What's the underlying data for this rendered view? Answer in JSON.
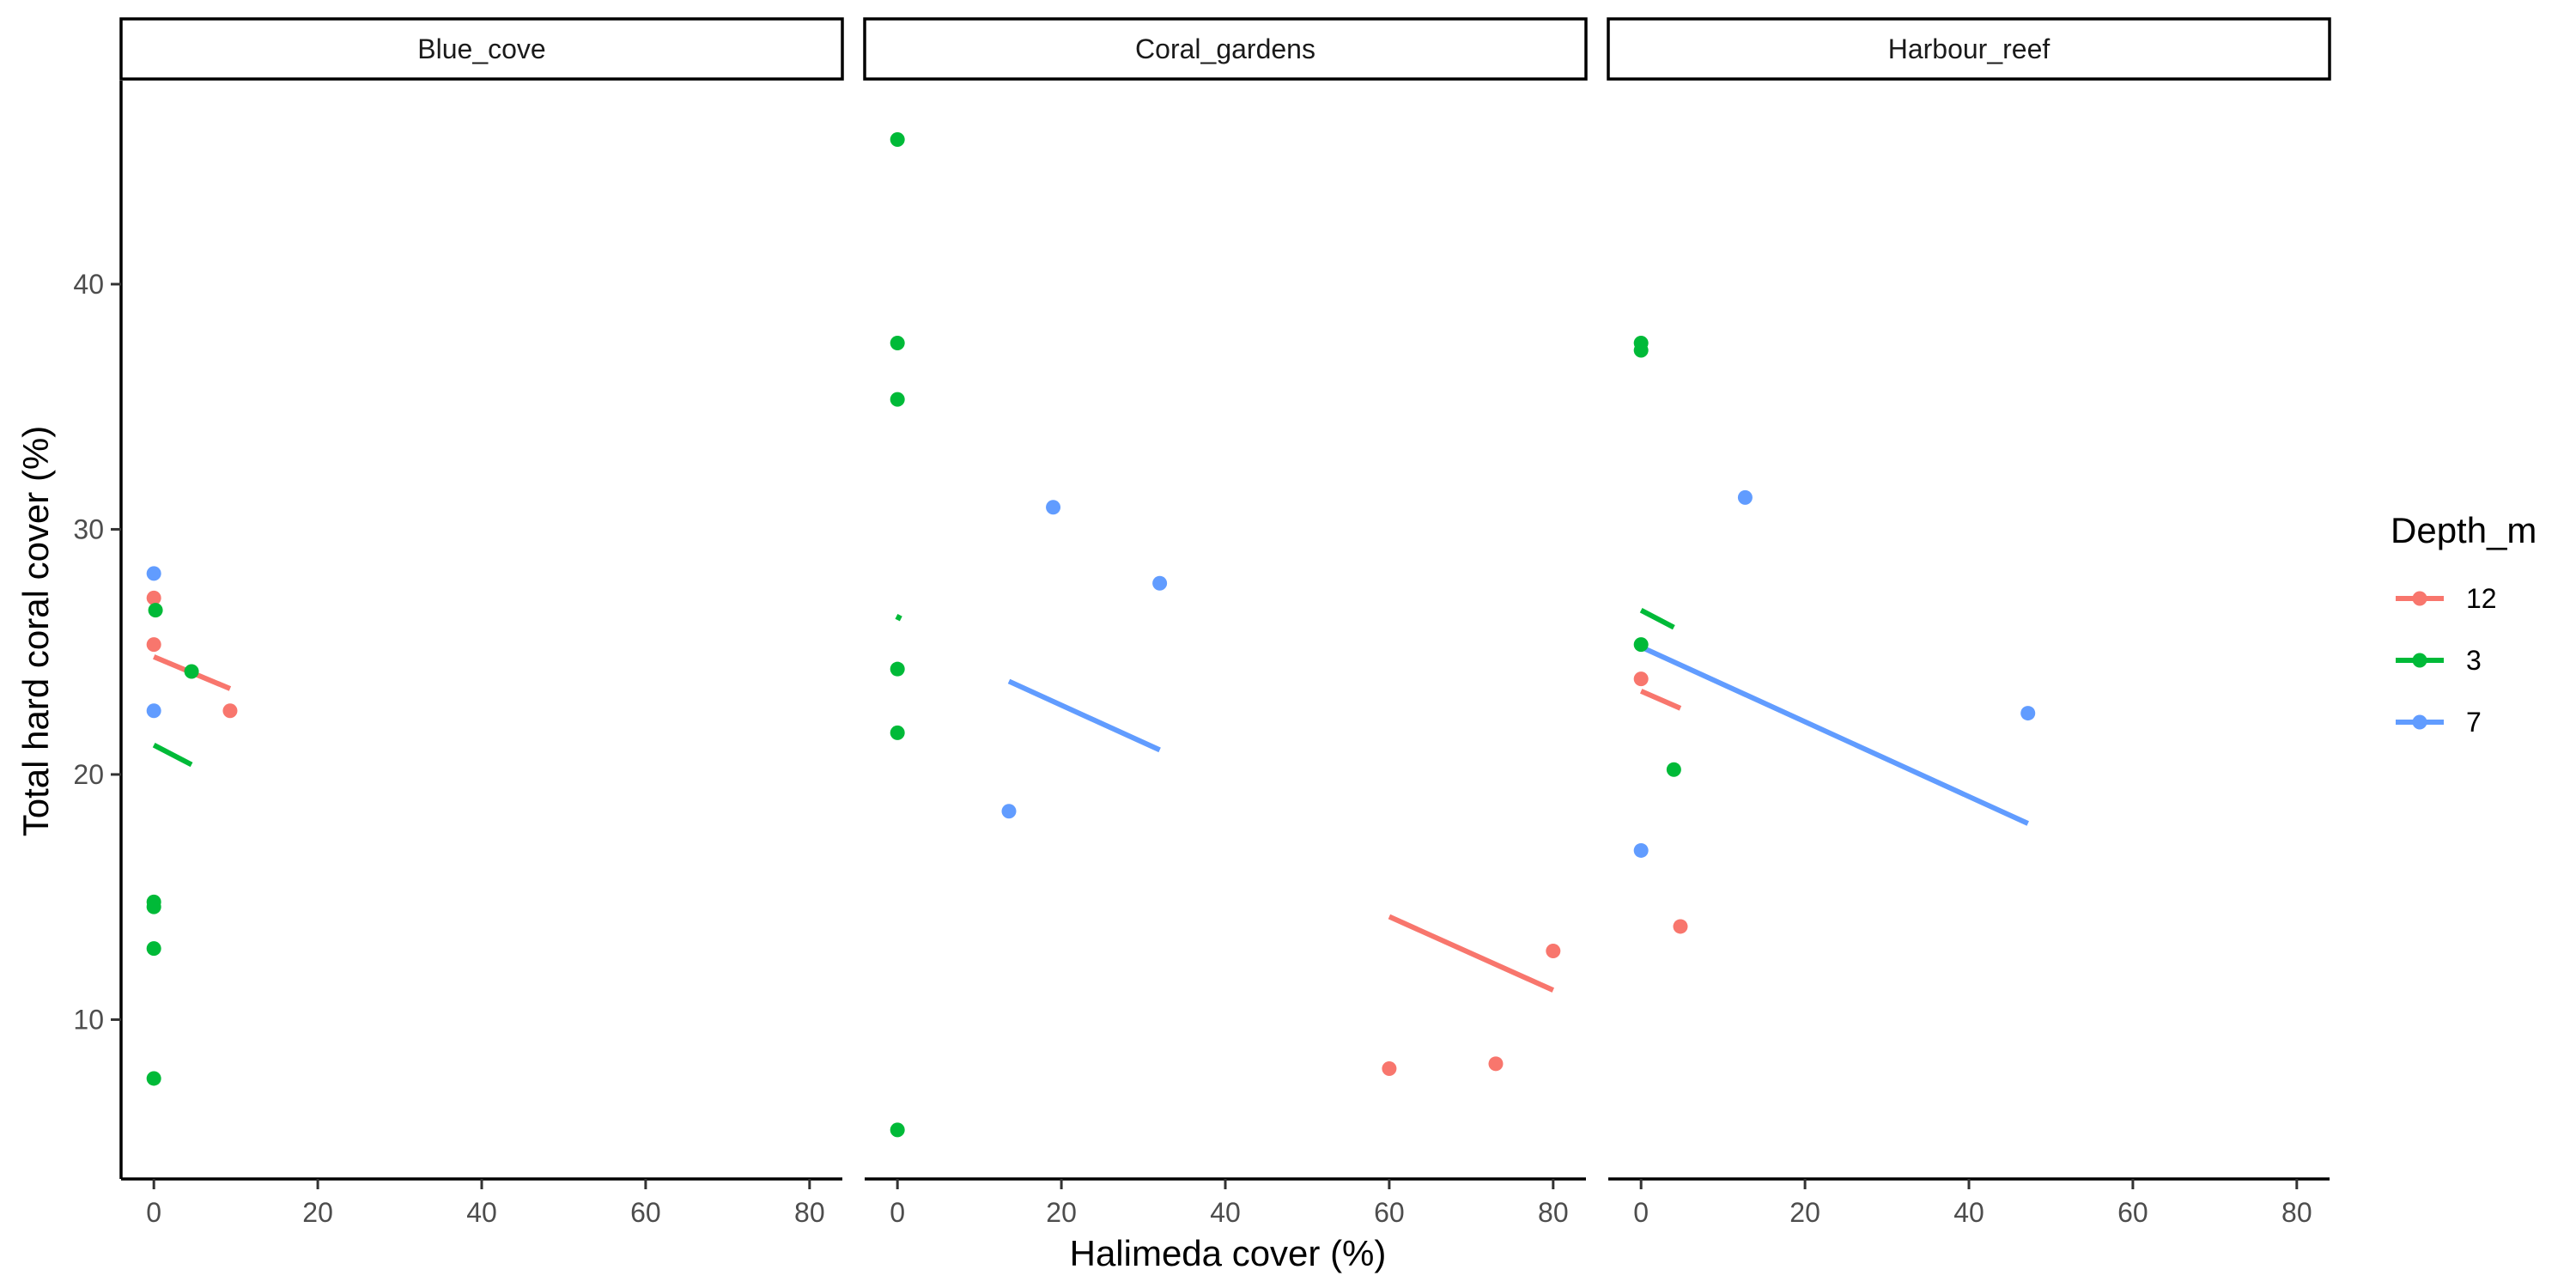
{
  "chart_data": {
    "type": "scatter",
    "xlabel": "Halimeda cover (%)",
    "ylabel": "Total hard coral cover (%)",
    "xlim": [
      -4,
      84
    ],
    "ylim": [
      3.5,
      48.3
    ],
    "x_ticks": [
      0,
      20,
      40,
      60,
      80
    ],
    "y_ticks": [
      10,
      20,
      30,
      40
    ],
    "grid": false,
    "legend": {
      "title": "Depth_m",
      "placement": "right",
      "entries": [
        {
          "label": "12",
          "color": "#F8766D"
        },
        {
          "label": "3",
          "color": "#00BA38"
        },
        {
          "label": "7",
          "color": "#619CFF"
        }
      ]
    },
    "panels": [
      {
        "name": "Blue_cove",
        "series": [
          {
            "name": "12",
            "points": [
              [
                0,
                27.2
              ],
              [
                0,
                25.3
              ],
              [
                9.3,
                22.6
              ]
            ],
            "fit": [
              [
                0,
                24.8
              ],
              [
                9.3,
                23.5
              ]
            ]
          },
          {
            "name": "3",
            "points": [
              [
                0.2,
                26.7
              ],
              [
                4.6,
                24.2
              ],
              [
                0,
                14.8
              ],
              [
                0,
                14.6
              ],
              [
                0,
                12.9
              ],
              [
                0,
                7.6
              ]
            ],
            "fit": [
              [
                0,
                21.2
              ],
              [
                4.6,
                20.4
              ]
            ]
          },
          {
            "name": "7",
            "points": [
              [
                0,
                28.2
              ],
              [
                0,
                22.6
              ]
            ],
            "fit": null
          }
        ]
      },
      {
        "name": "Coral_gardens",
        "series": [
          {
            "name": "12",
            "points": [
              [
                60,
                8.0
              ],
              [
                73,
                8.2
              ],
              [
                80,
                12.8
              ]
            ],
            "fit": [
              [
                60,
                14.2
              ],
              [
                80,
                11.2
              ]
            ]
          },
          {
            "name": "3",
            "points": [
              [
                0,
                45.9
              ],
              [
                0,
                37.6
              ],
              [
                0,
                35.3
              ],
              [
                0,
                24.3
              ],
              [
                0,
                21.7
              ],
              [
                0,
                5.5
              ]
            ],
            "fit": [
              [
                0,
                26.3
              ],
              [
                0.3,
                26.5
              ]
            ]
          },
          {
            "name": "7",
            "points": [
              [
                13.6,
                18.5
              ],
              [
                19,
                30.9
              ],
              [
                32,
                27.8
              ]
            ],
            "fit": [
              [
                13.6,
                23.8
              ],
              [
                32,
                21.0
              ]
            ]
          }
        ]
      },
      {
        "name": "Harbour_reef",
        "series": [
          {
            "name": "12",
            "points": [
              [
                0,
                23.9
              ],
              [
                4.8,
                13.8
              ]
            ],
            "fit": [
              [
                0,
                23.4
              ],
              [
                4.8,
                22.7
              ]
            ]
          },
          {
            "name": "3",
            "points": [
              [
                0,
                37.6
              ],
              [
                0,
                37.3
              ],
              [
                0,
                25.3
              ],
              [
                4,
                20.2
              ]
            ],
            "fit": [
              [
                0,
                26.7
              ],
              [
                4,
                26.0
              ]
            ]
          },
          {
            "name": "7",
            "points": [
              [
                0,
                16.9
              ],
              [
                12.7,
                31.3
              ],
              [
                47.2,
                22.5
              ]
            ],
            "fit": [
              [
                0,
                25.2
              ],
              [
                47.2,
                18.0
              ]
            ]
          }
        ]
      }
    ]
  }
}
